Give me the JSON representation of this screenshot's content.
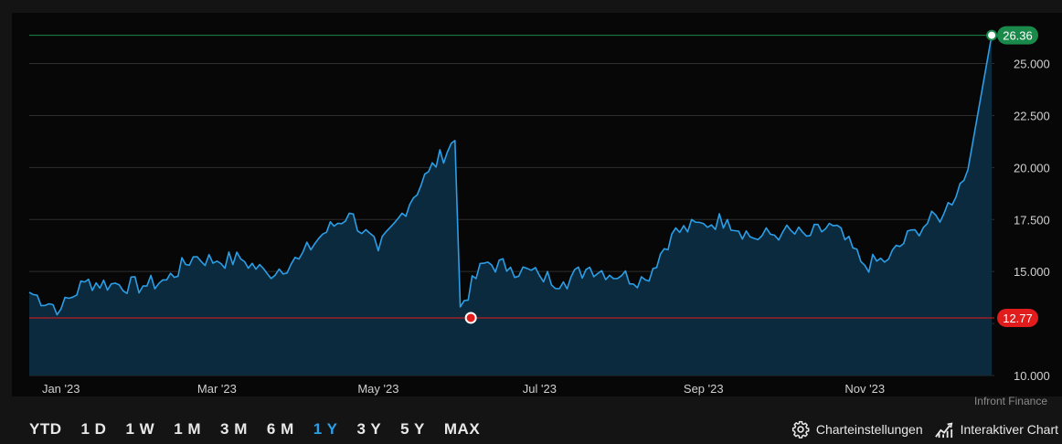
{
  "chart_data": {
    "type": "area",
    "series": [
      {
        "values_by_date": true
      }
    ],
    "x": [
      "2022-12-20",
      "2023-01-01",
      "2023-01-10",
      "2023-01-20",
      "2023-02-01",
      "2023-02-10",
      "2023-02-20",
      "2023-03-01",
      "2023-03-10",
      "2023-03-20",
      "2023-04-01",
      "2023-04-10",
      "2023-04-20",
      "2023-05-01",
      "2023-05-10",
      "2023-05-20",
      "2023-05-30",
      "2023-06-01",
      "2023-06-10",
      "2023-06-20",
      "2023-07-01",
      "2023-07-10",
      "2023-07-20",
      "2023-08-01",
      "2023-08-10",
      "2023-08-20",
      "2023-09-01",
      "2023-09-10",
      "2023-09-20",
      "2023-10-01",
      "2023-10-10",
      "2023-10-20",
      "2023-11-01",
      "2023-11-10",
      "2023-11-20",
      "2023-12-01",
      "2023-12-10",
      "2023-12-19"
    ],
    "y": [
      14.0,
      13.2,
      14.5,
      14.4,
      14.3,
      14.6,
      15.7,
      15.5,
      15.6,
      14.9,
      15.6,
      16.8,
      17.8,
      16.0,
      17.8,
      19.8,
      21.3,
      13.3,
      15.4,
      15.2,
      14.8,
      14.5,
      15.2,
      14.8,
      14.6,
      16.8,
      17.3,
      17.5,
      16.6,
      16.9,
      16.7,
      17.2,
      15.3,
      15.6,
      17.0,
      17.8,
      19.9,
      26.36
    ],
    "xlabels": [
      "Jan '23",
      "Mar '23",
      "May '23",
      "Jul '23",
      "Sep '23",
      "Nov '23"
    ],
    "xlabel_dates": [
      "2023-01-01",
      "2023-03-01",
      "2023-05-01",
      "2023-07-01",
      "2023-09-01",
      "2023-11-01"
    ],
    "yticks": [
      "25.000",
      "22.500",
      "20.000",
      "17.500",
      "15.000",
      "",
      "10.000"
    ],
    "ytick_values": [
      25.0,
      22.5,
      20.0,
      17.5,
      15.0,
      12.5,
      10.0
    ],
    "ylim": [
      10.0,
      27.0
    ],
    "high_label": "26.36",
    "low_label": "12.77",
    "high_value": 26.36,
    "low_value": 12.77,
    "low_date": "2023-06-05",
    "xlim": [
      "2022-12-20",
      "2023-12-20"
    ],
    "title": "",
    "xlabel": "",
    "ylabel": "",
    "grid": "horizontal",
    "colors": {
      "line": "#2b9ee6",
      "fill": "#0c2a3e",
      "high": "#1a8a4a",
      "low": "#e11c1c",
      "grid": "#2e2e2e"
    }
  },
  "source": "Infront Finance",
  "ranges": [
    "YTD",
    "1 D",
    "1 W",
    "1 M",
    "3 M",
    "6 M",
    "1 Y",
    "3 Y",
    "5 Y",
    "MAX"
  ],
  "active_range": "1 Y",
  "tools": {
    "settings_label": "Charteinstellungen",
    "interactive_label": "Interaktiver Chart",
    "settings_icon": "gear-icon",
    "interactive_icon": "chart-line-icon"
  }
}
